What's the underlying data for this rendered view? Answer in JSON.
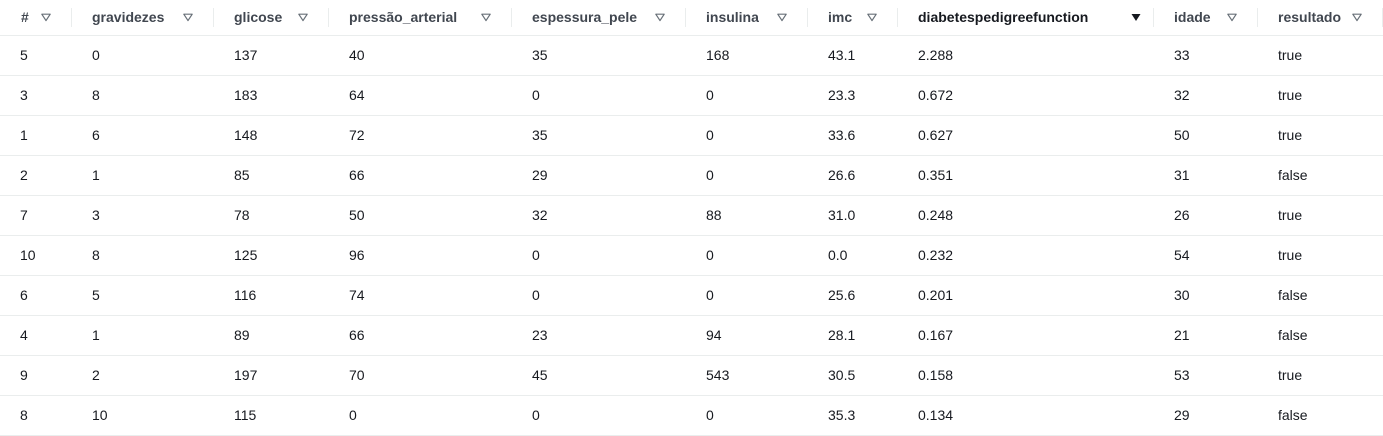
{
  "table": {
    "columns": [
      {
        "label": "#",
        "sorted": false
      },
      {
        "label": "gravidezes",
        "sorted": false
      },
      {
        "label": "glicose",
        "sorted": false
      },
      {
        "label": "pressão_arterial",
        "sorted": false
      },
      {
        "label": "espessura_pele",
        "sorted": false
      },
      {
        "label": "insulina",
        "sorted": false
      },
      {
        "label": "imc",
        "sorted": false
      },
      {
        "label": "diabetespedigreefunction",
        "sorted": true
      },
      {
        "label": "idade",
        "sorted": false
      },
      {
        "label": "resultado",
        "sorted": false
      }
    ],
    "rows": [
      [
        "5",
        "0",
        "137",
        "40",
        "35",
        "168",
        "43.1",
        "2.288",
        "33",
        "true"
      ],
      [
        "3",
        "8",
        "183",
        "64",
        "0",
        "0",
        "23.3",
        "0.672",
        "32",
        "true"
      ],
      [
        "1",
        "6",
        "148",
        "72",
        "35",
        "0",
        "33.6",
        "0.627",
        "50",
        "true"
      ],
      [
        "2",
        "1",
        "85",
        "66",
        "29",
        "0",
        "26.6",
        "0.351",
        "31",
        "false"
      ],
      [
        "7",
        "3",
        "78",
        "50",
        "32",
        "88",
        "31.0",
        "0.248",
        "26",
        "true"
      ],
      [
        "10",
        "8",
        "125",
        "96",
        "0",
        "0",
        "0.0",
        "0.232",
        "54",
        "true"
      ],
      [
        "6",
        "5",
        "116",
        "74",
        "0",
        "0",
        "25.6",
        "0.201",
        "30",
        "false"
      ],
      [
        "4",
        "1",
        "89",
        "66",
        "23",
        "94",
        "28.1",
        "0.167",
        "21",
        "false"
      ],
      [
        "9",
        "2",
        "197",
        "70",
        "45",
        "543",
        "30.5",
        "0.158",
        "53",
        "true"
      ],
      [
        "8",
        "10",
        "115",
        "0",
        "0",
        "0",
        "35.3",
        "0.134",
        "29",
        "false"
      ]
    ]
  },
  "colors": {
    "header_text": "#414750",
    "cell_text": "#16191f",
    "border": "#eaeded",
    "filter_icon": "#687078",
    "sort_icon": "#16191f"
  },
  "icons": {
    "filter": "triangle-down-outline-icon",
    "sort": "triangle-down-filled-icon"
  }
}
